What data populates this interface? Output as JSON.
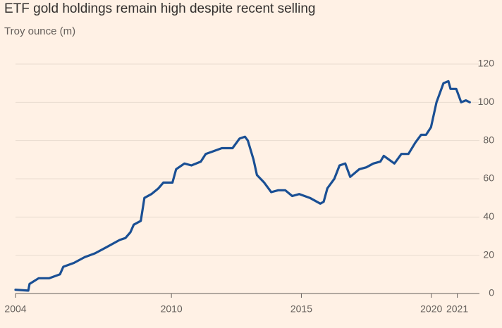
{
  "chart_data": {
    "type": "line",
    "title": "ETF gold holdings remain high despite recent selling",
    "subtitle": "Troy ounce (m)",
    "xlim": [
      2004,
      2021.5
    ],
    "xticks": [
      2004,
      2010,
      2015,
      2020,
      2021
    ],
    "ylim": [
      0,
      120
    ],
    "yticks": [
      0,
      20,
      40,
      60,
      80,
      100,
      120
    ],
    "grid": true,
    "series": [
      {
        "color": "#1a4f94",
        "x": [
          2004.0,
          2004.49,
          2004.54,
          2004.89,
          2005.3,
          2005.71,
          2005.84,
          2006.25,
          2006.66,
          2007.06,
          2007.47,
          2008.01,
          2008.23,
          2008.42,
          2008.55,
          2008.82,
          2008.96,
          2009.23,
          2009.5,
          2009.69,
          2010.04,
          2010.18,
          2010.5,
          2010.77,
          2011.13,
          2011.32,
          2011.53,
          2011.94,
          2012.35,
          2012.62,
          2012.83,
          2012.94,
          2013.16,
          2013.29,
          2013.57,
          2013.84,
          2014.11,
          2014.38,
          2014.65,
          2014.92,
          2015.33,
          2015.73,
          2015.86,
          2016.0,
          2016.27,
          2016.47,
          2016.69,
          2016.88,
          2017.23,
          2017.5,
          2017.77,
          2018.04,
          2018.17,
          2018.58,
          2018.85,
          2019.12,
          2019.39,
          2019.61,
          2019.8,
          2019.99,
          2020.2,
          2020.47,
          2020.66,
          2020.74,
          2020.96,
          2021.15,
          2021.33,
          2021.48
        ],
        "values": [
          2,
          1.5,
          5,
          8,
          8,
          10,
          14,
          16,
          19,
          21,
          24,
          28,
          29,
          32,
          36,
          38,
          50,
          52,
          55,
          58,
          58,
          65,
          68,
          67,
          69,
          73,
          74,
          76,
          76,
          81,
          82,
          80,
          70,
          62,
          58,
          53,
          54,
          54,
          51,
          52,
          50,
          47,
          48,
          55,
          60,
          67,
          68,
          61,
          65,
          66,
          68,
          69,
          72,
          68,
          73,
          73,
          79,
          83,
          83,
          87,
          100,
          110,
          111,
          107,
          107,
          100,
          101,
          100
        ]
      }
    ]
  }
}
